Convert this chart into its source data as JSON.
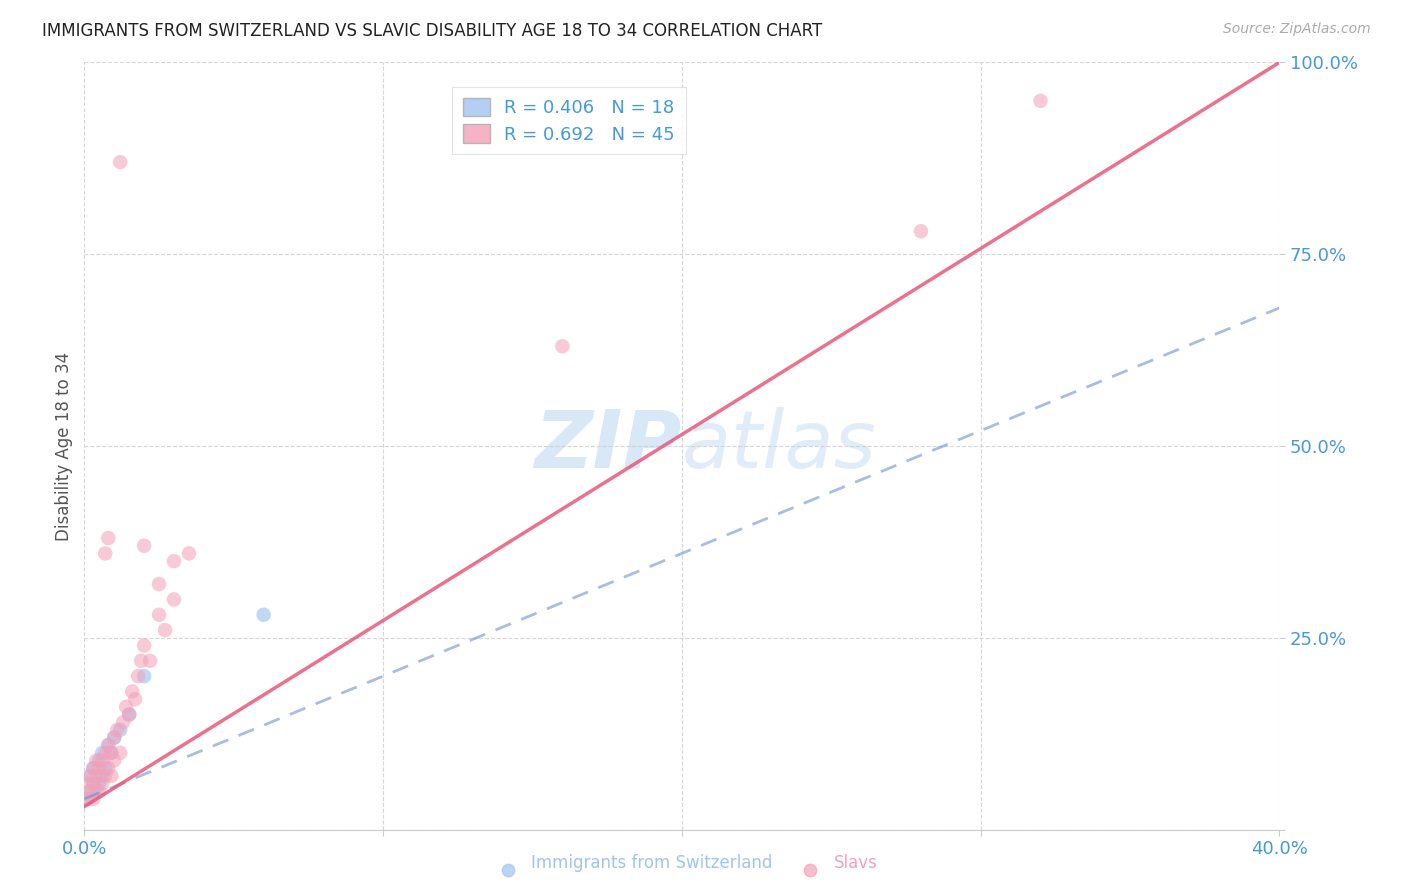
{
  "title": "IMMIGRANTS FROM SWITZERLAND VS SLAVIC DISABILITY AGE 18 TO 34 CORRELATION CHART",
  "source": "Source: ZipAtlas.com",
  "ylabel": "Disability Age 18 to 34",
  "xlim": [
    0.0,
    0.4
  ],
  "ylim": [
    0.0,
    1.0
  ],
  "xticks": [
    0.0,
    0.1,
    0.2,
    0.3,
    0.4
  ],
  "xtick_labels": [
    "0.0%",
    "",
    "",
    "",
    "40.0%"
  ],
  "ytick_labels": [
    "",
    "25.0%",
    "50.0%",
    "75.0%",
    "100.0%"
  ],
  "yticks": [
    0.0,
    0.25,
    0.5,
    0.75,
    1.0
  ],
  "swiss_color": "#a0c4f0",
  "slavic_color": "#f4a0b8",
  "swiss_line_color": "#7090d0",
  "slavic_line_color": "#e85878",
  "tick_color": "#4499dd",
  "watermark_color": "#c8dff5",
  "swiss_x": [
    0.001,
    0.002,
    0.002,
    0.003,
    0.003,
    0.004,
    0.005,
    0.005,
    0.006,
    0.006,
    0.007,
    0.008,
    0.009,
    0.01,
    0.012,
    0.015,
    0.02,
    0.06
  ],
  "swiss_y": [
    0.04,
    0.05,
    0.07,
    0.06,
    0.08,
    0.05,
    0.06,
    0.09,
    0.07,
    0.1,
    0.08,
    0.11,
    0.1,
    0.12,
    0.13,
    0.15,
    0.2,
    0.28
  ],
  "slavic_x": [
    0.001,
    0.001,
    0.002,
    0.002,
    0.003,
    0.003,
    0.003,
    0.004,
    0.004,
    0.005,
    0.005,
    0.006,
    0.006,
    0.007,
    0.007,
    0.008,
    0.008,
    0.009,
    0.009,
    0.01,
    0.01,
    0.011,
    0.012,
    0.013,
    0.014,
    0.015,
    0.016,
    0.017,
    0.018,
    0.019,
    0.02,
    0.022,
    0.025,
    0.027,
    0.03,
    0.035,
    0.012,
    0.008,
    0.02,
    0.025,
    0.03,
    0.28,
    0.32,
    0.16,
    0.007
  ],
  "slavic_y": [
    0.04,
    0.06,
    0.05,
    0.07,
    0.04,
    0.06,
    0.08,
    0.07,
    0.09,
    0.05,
    0.08,
    0.06,
    0.09,
    0.07,
    0.1,
    0.08,
    0.11,
    0.07,
    0.1,
    0.09,
    0.12,
    0.13,
    0.1,
    0.14,
    0.16,
    0.15,
    0.18,
    0.17,
    0.2,
    0.22,
    0.24,
    0.22,
    0.28,
    0.26,
    0.3,
    0.36,
    0.87,
    0.38,
    0.37,
    0.32,
    0.35,
    0.78,
    0.95,
    0.63,
    0.36
  ],
  "swiss_reg": [
    0.0,
    0.4,
    0.04,
    0.68
  ],
  "slavic_reg": [
    0.0,
    0.4,
    0.03,
    1.0
  ]
}
